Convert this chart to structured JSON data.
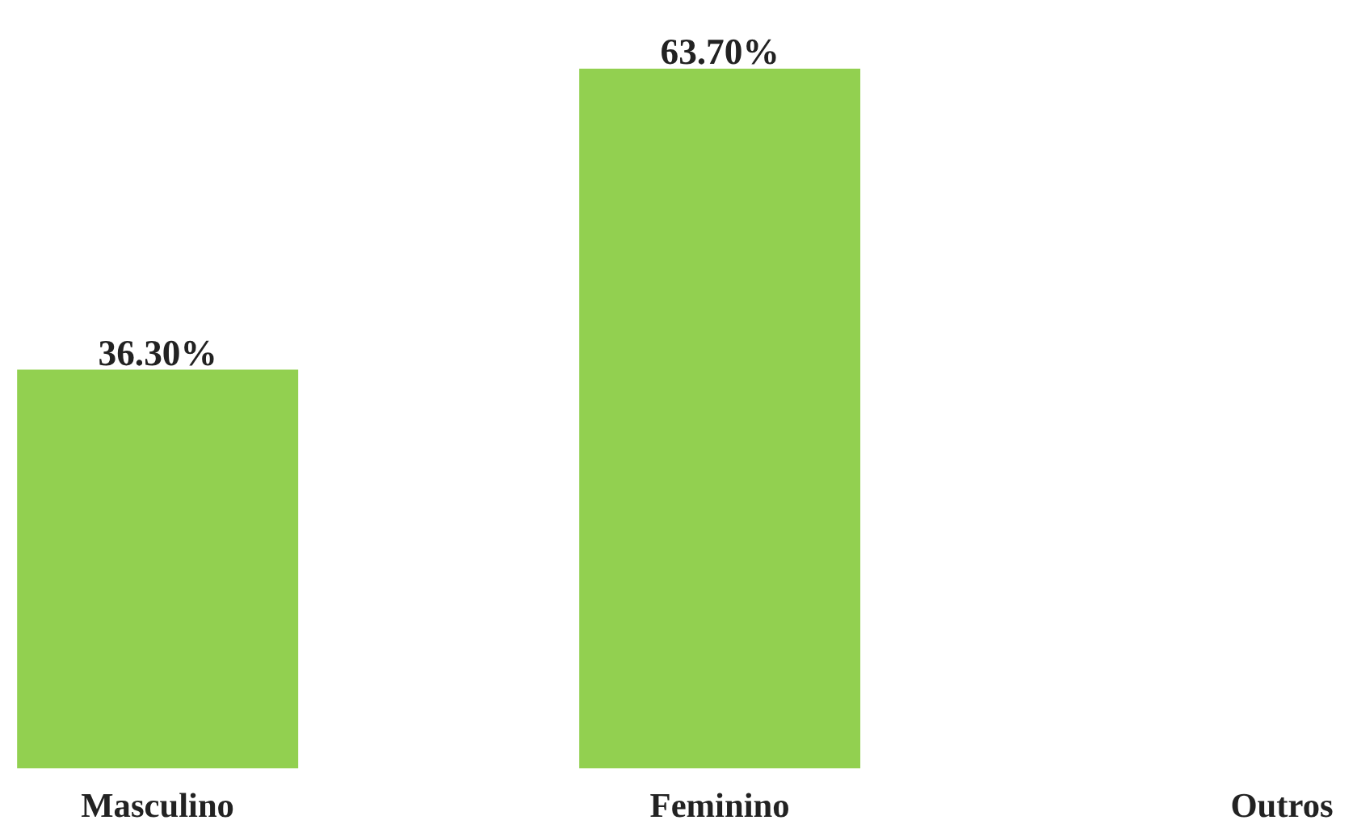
{
  "chart_data": {
    "type": "bar",
    "categories": [
      "Masculino",
      "Feminino",
      "Outros"
    ],
    "values": [
      36.3,
      63.7,
      0
    ],
    "value_labels": [
      "36.30%",
      "63.70%",
      null
    ],
    "color": "#92d050"
  }
}
